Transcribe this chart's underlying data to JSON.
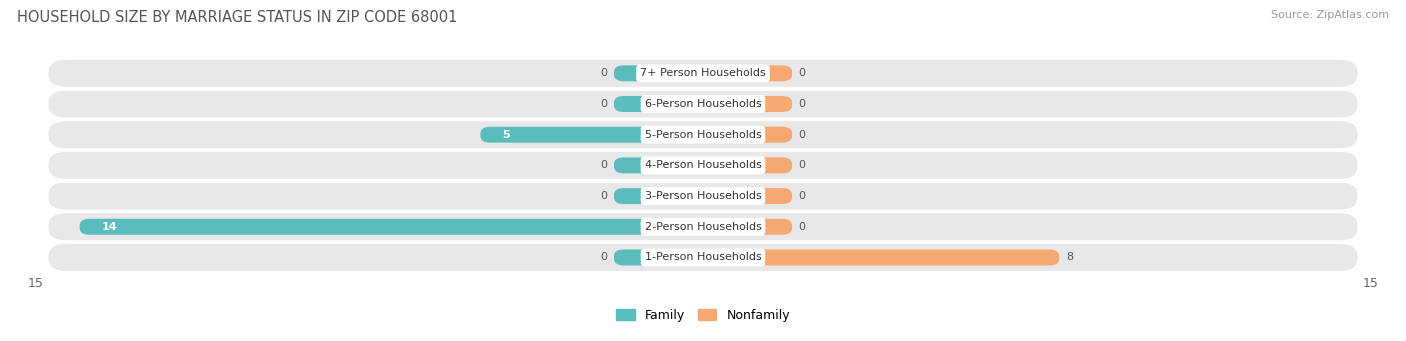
{
  "title": "HOUSEHOLD SIZE BY MARRIAGE STATUS IN ZIP CODE 68001",
  "source": "Source: ZipAtlas.com",
  "categories": [
    "7+ Person Households",
    "6-Person Households",
    "5-Person Households",
    "4-Person Households",
    "3-Person Households",
    "2-Person Households",
    "1-Person Households"
  ],
  "family_values": [
    0,
    0,
    5,
    0,
    0,
    14,
    0
  ],
  "nonfamily_values": [
    0,
    0,
    0,
    0,
    0,
    0,
    8
  ],
  "family_color": "#5bbcbd",
  "nonfamily_color": "#f5a870",
  "xlim": [
    -15,
    15
  ],
  "x_ticks": [
    -15,
    15
  ],
  "bar_height": 0.52,
  "row_bg_color": "#e8e8e8",
  "title_fontsize": 10.5,
  "source_fontsize": 8,
  "tick_fontsize": 9,
  "legend_fontsize": 9,
  "value_fontsize": 8,
  "category_fontsize": 8,
  "stub_size": 2.0
}
